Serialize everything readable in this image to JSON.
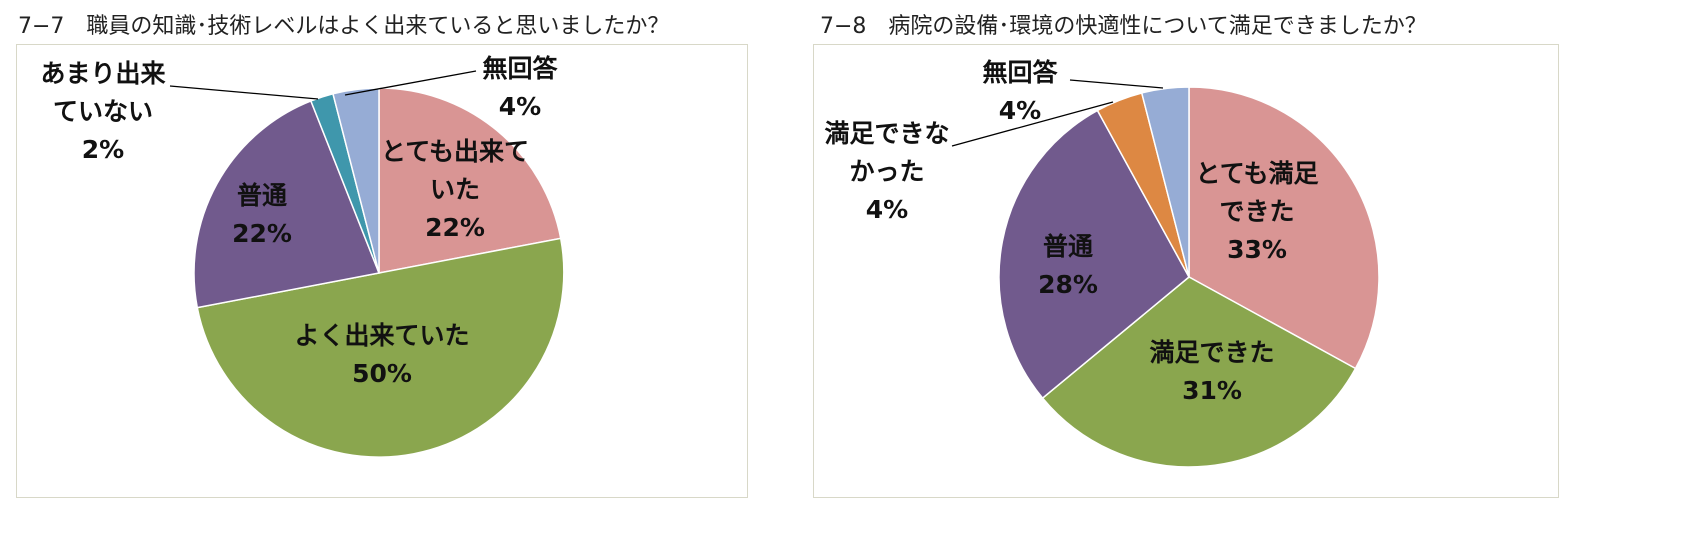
{
  "chart_data": [
    {
      "type": "pie",
      "title": "7−7　職員の知識･技術レベルはよく出来ていると思いましたか？",
      "slices": [
        {
          "label": "とても出来て\nいた",
          "value": 22,
          "value_label": "22%",
          "color": "#d99594"
        },
        {
          "label": "よく出来ていた",
          "value": 50,
          "value_label": "50%",
          "color": "#8aa64e"
        },
        {
          "label": "普通",
          "value": 22,
          "value_label": "22%",
          "color": "#715a8d"
        },
        {
          "label": "あまり出来\nていない",
          "value": 2,
          "value_label": "2%",
          "color": "#3f97ac"
        },
        {
          "label": "無回答",
          "value": 4,
          "value_label": "4%",
          "color": "#96acd5"
        }
      ]
    },
    {
      "type": "pie",
      "title": "7−8　病院の設備･環境の快適性について満足できましたか？",
      "slices": [
        {
          "label": "とても満足\nできた",
          "value": 33,
          "value_label": "33%",
          "color": "#d99594"
        },
        {
          "label": "満足できた",
          "value": 31,
          "value_label": "31%",
          "color": "#8aa64e"
        },
        {
          "label": "普通",
          "value": 28,
          "value_label": "28%",
          "color": "#715a8d"
        },
        {
          "label": "満足できな\nかった",
          "value": 4,
          "value_label": "4%",
          "color": "#dd8843"
        },
        {
          "label": "無回答",
          "value": 4,
          "value_label": "4%",
          "color": "#96acd5"
        }
      ]
    }
  ]
}
